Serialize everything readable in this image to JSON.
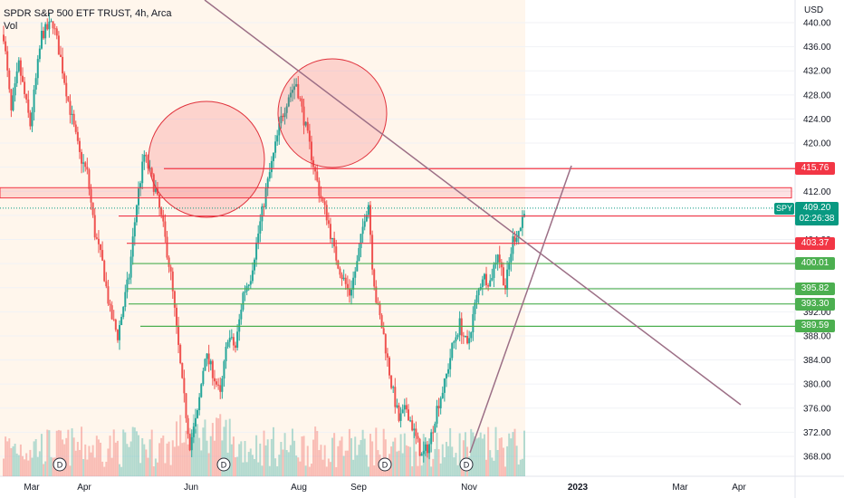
{
  "header": {
    "symbol_line": "SPDR S&P 500 ETF TRUST, 4h, Arca",
    "volume_label": "Vol"
  },
  "axis": {
    "currency": "USD"
  },
  "chart_data": {
    "type": "candlestick",
    "y_ticks": [
      368,
      372,
      376,
      380,
      384,
      388,
      392,
      396,
      400,
      404,
      408,
      412,
      416,
      420,
      424,
      428,
      432,
      436,
      440
    ],
    "y_tick_labels": [
      "368.00",
      "372.00",
      "376.00",
      "380.00",
      "384.00",
      "388.00",
      "392.00",
      "396.00",
      "400.00",
      "404.00",
      "408.00",
      "412.00",
      "416.00",
      "420.00",
      "424.00",
      "428.00",
      "432.00",
      "436.00",
      "440.00"
    ],
    "ylim": [
      365.3,
      442.5
    ],
    "x_labels": [
      "Mar",
      "Apr",
      "Jun",
      "Aug",
      "Sep",
      "Nov",
      "2023",
      "Mar",
      "Apr"
    ],
    "dividend_markers": [
      "D",
      "D",
      "D",
      "D"
    ],
    "price_path": [
      [
        0,
        438
      ],
      [
        2,
        425
      ],
      [
        4,
        433
      ],
      [
        7,
        423
      ],
      [
        10,
        438
      ],
      [
        13,
        440
      ],
      [
        15,
        434
      ],
      [
        17,
        427
      ],
      [
        19,
        421
      ],
      [
        20,
        418
      ],
      [
        22,
        415
      ],
      [
        24,
        405
      ],
      [
        26,
        400
      ],
      [
        28,
        392
      ],
      [
        30,
        388
      ],
      [
        33,
        398
      ],
      [
        35,
        410
      ],
      [
        37,
        418
      ],
      [
        38,
        416
      ],
      [
        40,
        412
      ],
      [
        42,
        406
      ],
      [
        44,
        398
      ],
      [
        45,
        392
      ],
      [
        47,
        380
      ],
      [
        49,
        370
      ],
      [
        51,
        375
      ],
      [
        53,
        385
      ],
      [
        55,
        382
      ],
      [
        57,
        378
      ],
      [
        59,
        388
      ],
      [
        61,
        386
      ],
      [
        63,
        395
      ],
      [
        65,
        398
      ],
      [
        67,
        405
      ],
      [
        69,
        412
      ],
      [
        71,
        418
      ],
      [
        73,
        424
      ],
      [
        75,
        428
      ],
      [
        77,
        430
      ],
      [
        79,
        424
      ],
      [
        81,
        418
      ],
      [
        83,
        412
      ],
      [
        85,
        408
      ],
      [
        87,
        402
      ],
      [
        89,
        398
      ],
      [
        91,
        395
      ],
      [
        93,
        400
      ],
      [
        95,
        408
      ],
      [
        96,
        410
      ],
      [
        97,
        400
      ],
      [
        98,
        394
      ],
      [
        100,
        388
      ],
      [
        102,
        380
      ],
      [
        104,
        374
      ],
      [
        106,
        376
      ],
      [
        108,
        372
      ],
      [
        110,
        368
      ],
      [
        112,
        370
      ],
      [
        114,
        376
      ],
      [
        116,
        380
      ],
      [
        118,
        386
      ],
      [
        120,
        390
      ],
      [
        122,
        386
      ],
      [
        124,
        393
      ],
      [
        126,
        398
      ],
      [
        128,
        397
      ],
      [
        130,
        402
      ],
      [
        132,
        396
      ],
      [
        134,
        404
      ],
      [
        136,
        406
      ],
      [
        137,
        409.2
      ]
    ],
    "highlight_band": [
      410.9,
      412.6
    ],
    "series": [
      {
        "name": "SPY",
        "last": 409.2,
        "countdown": "02:26:38"
      }
    ],
    "resistance_levels": [
      {
        "value": 415.76,
        "label": "415.76",
        "color": "#f23645"
      },
      {
        "value": 407.9,
        "label": "407.90",
        "color": "#f23645"
      },
      {
        "value": 403.37,
        "label": "403.37",
        "color": "#f23645"
      }
    ],
    "support_levels": [
      {
        "value": 400.01,
        "label": "400.01",
        "color": "#4caf50"
      },
      {
        "value": 395.82,
        "label": "395.82",
        "color": "#4caf50"
      },
      {
        "value": 393.3,
        "label": "393.30",
        "color": "#4caf50"
      },
      {
        "value": 389.59,
        "label": "389.59",
        "color": "#4caf50"
      }
    ],
    "colors": {
      "up": "#26a69a",
      "down": "#ef5350",
      "resistance": "#f23645",
      "support": "#4caf50",
      "trendline": "#9c6f86",
      "last_price": "#089981"
    }
  }
}
